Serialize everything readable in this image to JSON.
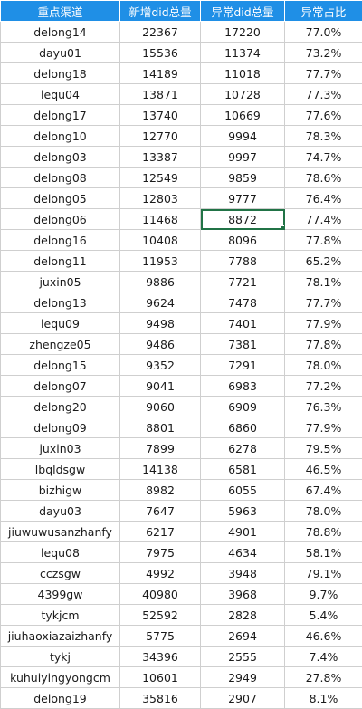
{
  "headers": [
    "重点渠道",
    "新增did总量",
    "异常did总量",
    "异常占比"
  ],
  "rows": [
    [
      "delong14",
      "22367",
      "17220",
      "77.0%"
    ],
    [
      "dayu01",
      "15536",
      "11374",
      "73.2%"
    ],
    [
      "delong18",
      "14189",
      "11018",
      "77.7%"
    ],
    [
      "lequ04",
      "13871",
      "10728",
      "77.3%"
    ],
    [
      "delong17",
      "13740",
      "10669",
      "77.6%"
    ],
    [
      "delong10",
      "12770",
      "9994",
      "78.3%"
    ],
    [
      "delong03",
      "13387",
      "9997",
      "74.7%"
    ],
    [
      "delong08",
      "12549",
      "9859",
      "78.6%"
    ],
    [
      "delong05",
      "12803",
      "9777",
      "76.4%"
    ],
    [
      "delong06",
      "11468",
      "8872",
      "77.4%"
    ],
    [
      "delong16",
      "10408",
      "8096",
      "77.8%"
    ],
    [
      "delong11",
      "11953",
      "7788",
      "65.2%"
    ],
    [
      "juxin05",
      "9886",
      "7721",
      "78.1%"
    ],
    [
      "delong13",
      "9624",
      "7478",
      "77.7%"
    ],
    [
      "lequ09",
      "9498",
      "7401",
      "77.9%"
    ],
    [
      "zhengze05",
      "9486",
      "7381",
      "77.8%"
    ],
    [
      "delong15",
      "9352",
      "7291",
      "78.0%"
    ],
    [
      "delong07",
      "9041",
      "6983",
      "77.2%"
    ],
    [
      "delong20",
      "9060",
      "6909",
      "76.3%"
    ],
    [
      "delong09",
      "8801",
      "6860",
      "77.9%"
    ],
    [
      "juxin03",
      "7899",
      "6278",
      "79.5%"
    ],
    [
      "lbqldsgw",
      "14138",
      "6581",
      "46.5%"
    ],
    [
      "bizhigw",
      "8982",
      "6055",
      "67.4%"
    ],
    [
      "dayu03",
      "7647",
      "5963",
      "78.0%"
    ],
    [
      "jiuwuwusanzhanfy",
      "6217",
      "4901",
      "78.8%"
    ],
    [
      "lequ08",
      "7975",
      "4634",
      "58.1%"
    ],
    [
      "cczsgw",
      "4992",
      "3948",
      "79.1%"
    ],
    [
      "4399gw",
      "40980",
      "3968",
      "9.7%"
    ],
    [
      "tykjcm",
      "52592",
      "2828",
      "5.4%"
    ],
    [
      "jiuhaoxiazaizhanfy",
      "5775",
      "2694",
      "46.6%"
    ],
    [
      "tykj",
      "34396",
      "2555",
      "7.4%"
    ],
    [
      "kuhuiyingyongcm",
      "10601",
      "2949",
      "27.8%"
    ],
    [
      "delong19",
      "35816",
      "2907",
      "8.1%"
    ]
  ],
  "selected_cell": {
    "row": 9,
    "col": 2
  },
  "colors": {
    "header_bg": "#1f8fe6",
    "header_text": "#ffffff",
    "selection": "#217346",
    "grid": "#cfcfcf"
  }
}
